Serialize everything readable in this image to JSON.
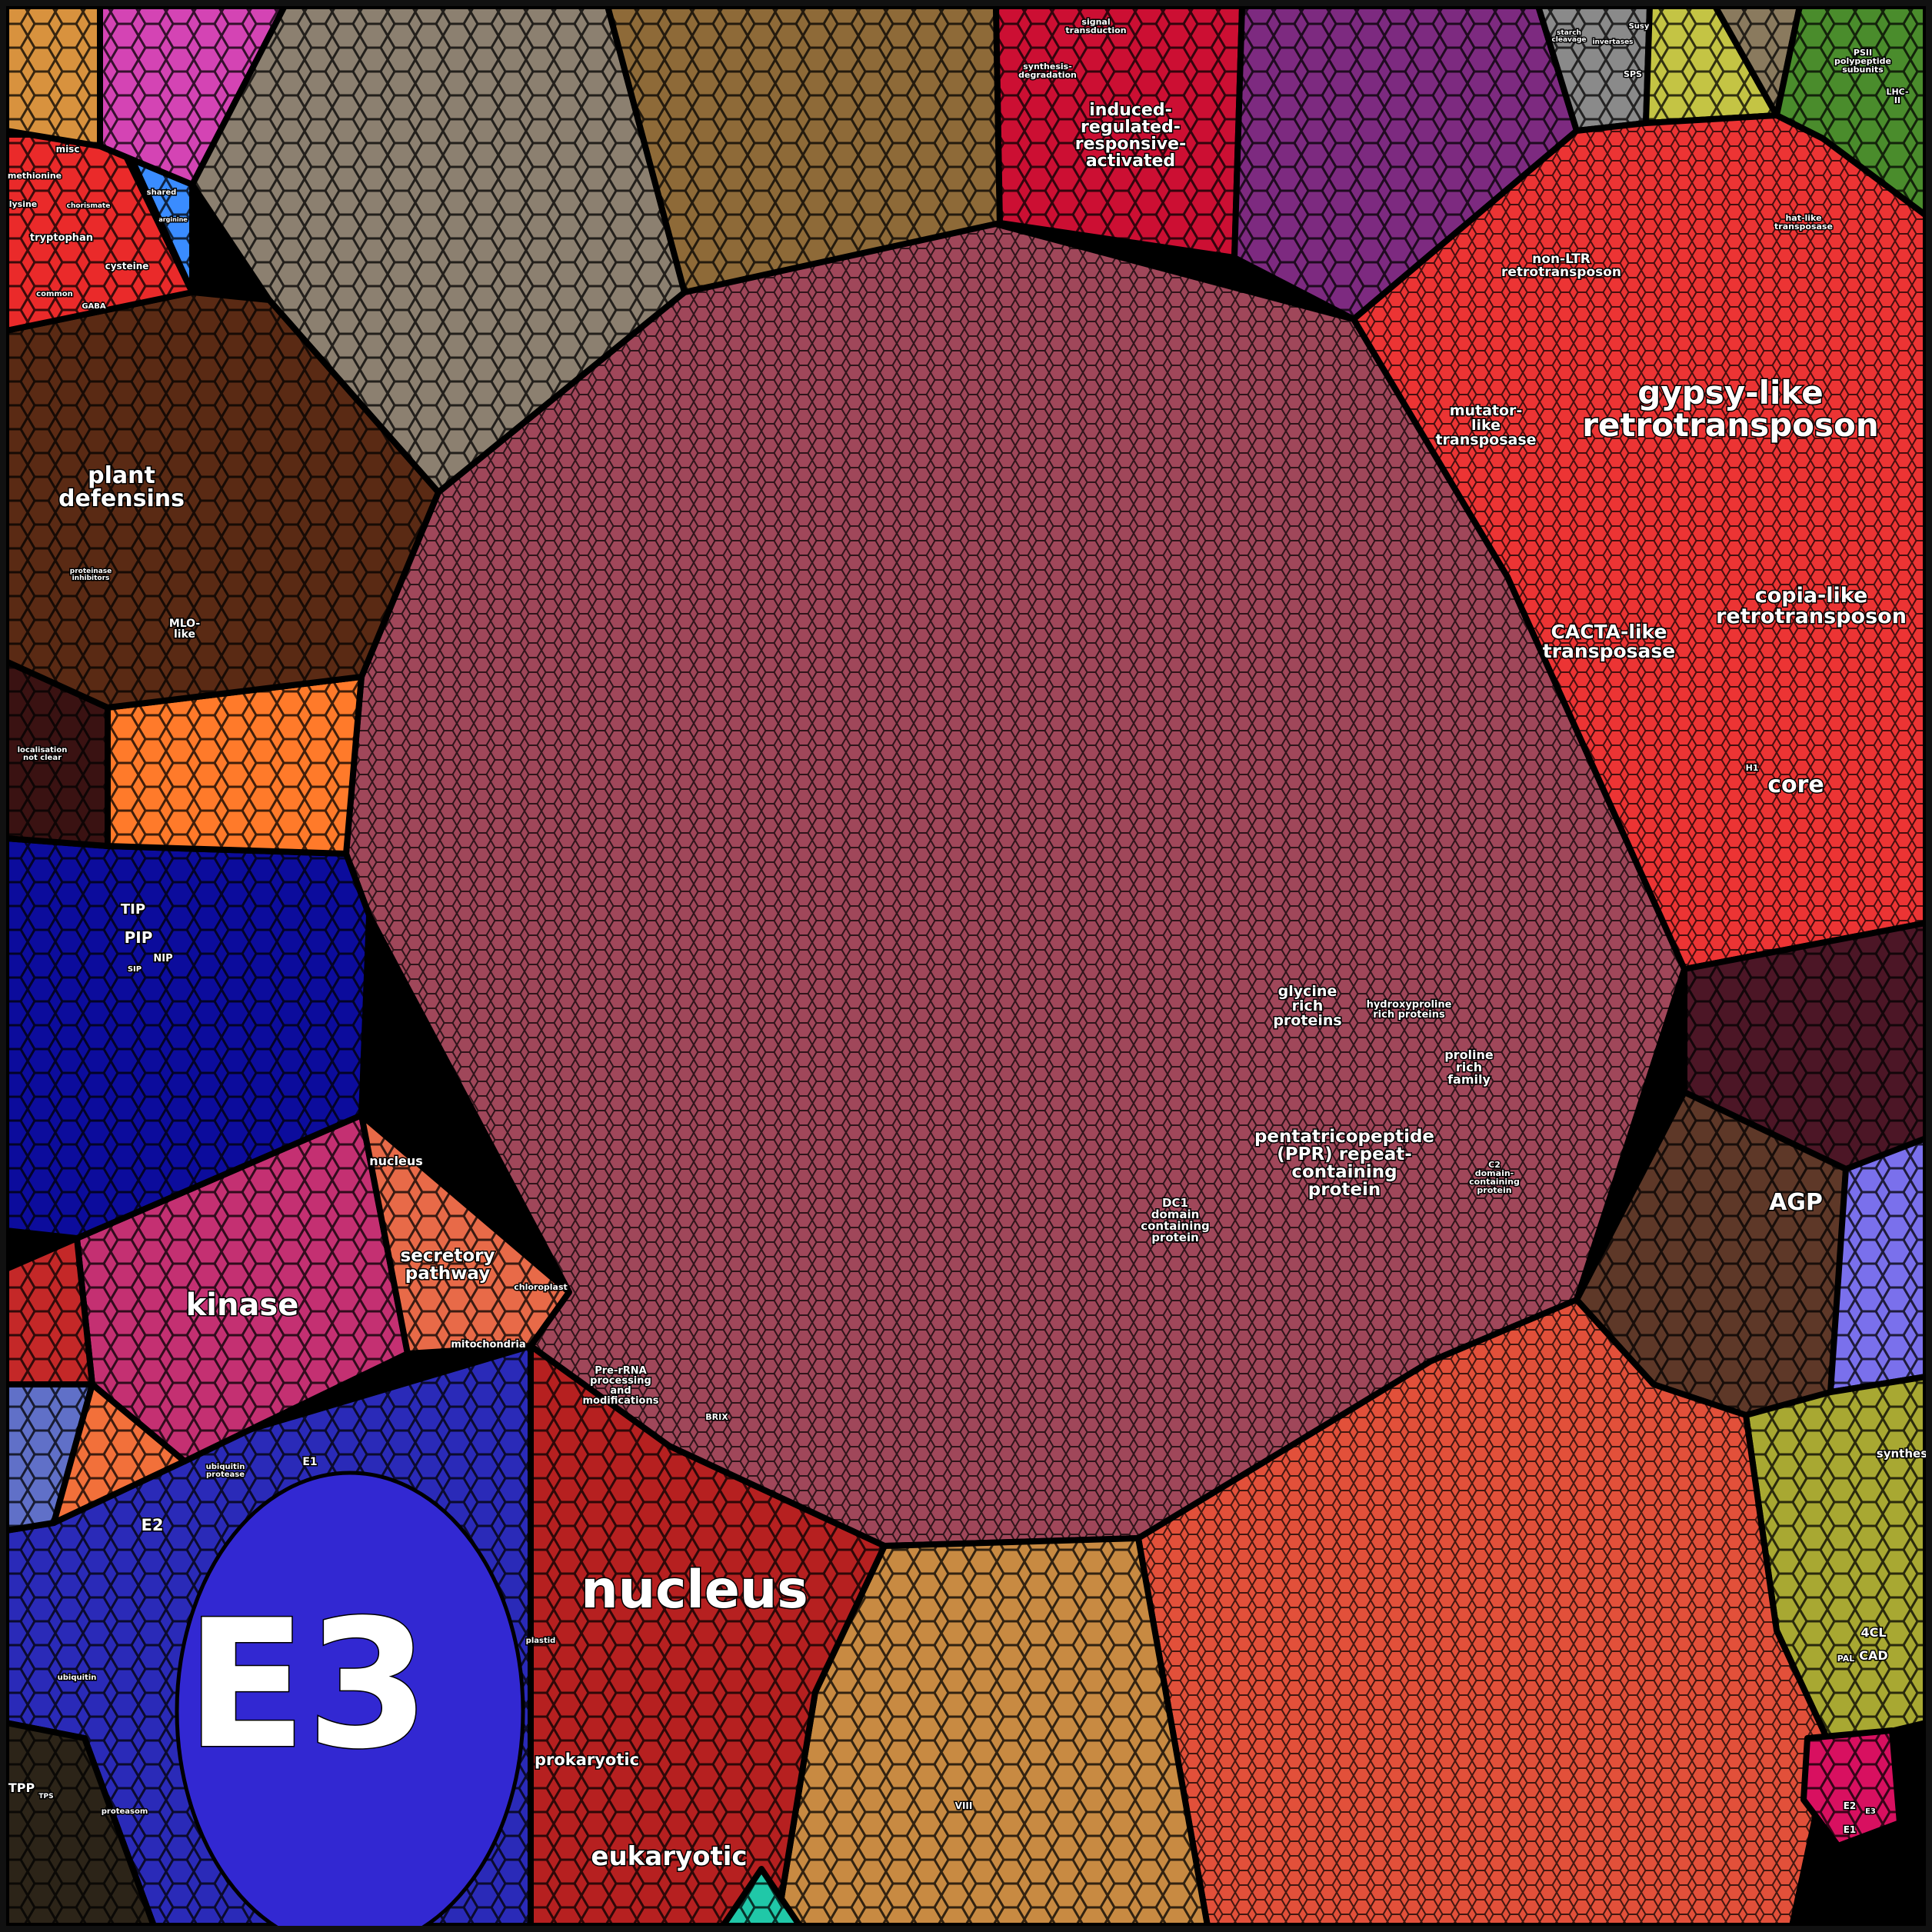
{
  "regions": [
    {
      "name": "ppr-repeat-proteins",
      "color": "#a0475a"
    },
    {
      "name": "taupe-grey-group",
      "color": "#8c8070"
    },
    {
      "name": "gold-brown-group",
      "color": "#8e6a38"
    },
    {
      "name": "signalling-crimson",
      "color": "#cc0f33"
    },
    {
      "name": "purple-group",
      "color": "#7d2a80"
    },
    {
      "name": "major-cho-grey",
      "color": "#8a8a8a"
    },
    {
      "name": "yellow-green-group",
      "color": "#c4c444"
    },
    {
      "name": "glycolysis-taupe",
      "color": "#8a7a5e"
    },
    {
      "name": "photosynthesis-green",
      "color": "#4a8c2c"
    },
    {
      "name": "transposons-red",
      "color": "#ec3434"
    },
    {
      "name": "dark-maroon-group",
      "color": "#4c1626"
    },
    {
      "name": "cell-wall-brown",
      "color": "#5e3828"
    },
    {
      "name": "nucleotide-lavender",
      "color": "#7a70ec"
    },
    {
      "name": "secondary-olive",
      "color": "#a8a832"
    },
    {
      "name": "rna-regulation-orange-red",
      "color": "#e2503a"
    },
    {
      "name": "misc-pink",
      "color": "#d81060"
    },
    {
      "name": "dna-gold",
      "color": "#c88a42"
    },
    {
      "name": "protein-synthesis-red",
      "color": "#b62020"
    },
    {
      "name": "protein-degradation-blue",
      "color": "#2a2ab8"
    },
    {
      "name": "signalling-kinase-pink",
      "color": "#c43072"
    },
    {
      "name": "protein-targeting-orange",
      "color": "#e86a48"
    },
    {
      "name": "transport-navy",
      "color": "#0c0c9c"
    },
    {
      "name": "lipid-orange",
      "color": "#ff7a2a"
    },
    {
      "name": "mito-electron-maroon",
      "color": "#3a1212"
    },
    {
      "name": "stress-brown",
      "color": "#5a2a14"
    },
    {
      "name": "amino-acid-red",
      "color": "#ea2a2a"
    },
    {
      "name": "amino-acid-degradation-blue",
      "color": "#3a8cff"
    },
    {
      "name": "hormone-orange",
      "color": "#d8923e"
    },
    {
      "name": "redox-magenta",
      "color": "#d444b4"
    },
    {
      "name": "trehalose-dark",
      "color": "#2c2418"
    },
    {
      "name": "left-red-small",
      "color": "#c42828"
    },
    {
      "name": "left-slate-blue",
      "color": "#6070c8"
    },
    {
      "name": "left-orange-small",
      "color": "#f2703a"
    },
    {
      "name": "teal-small",
      "color": "#20c8a8"
    },
    {
      "name": "e3-core",
      "color": "#3228d2"
    }
  ],
  "labels": [
    [
      "gypsy-like",
      "retrotransposon"
    ],
    [
      "copia-like",
      "retrotransposon"
    ],
    [
      "CACTA-like",
      "transposase"
    ],
    [
      "mutator-",
      "like",
      "transposase"
    ],
    [
      "non-LTR",
      "retrotransposon"
    ],
    [
      "hat-like",
      "transposase"
    ],
    [
      "core"
    ],
    [
      "H1"
    ],
    [
      "induced-",
      "regulated-",
      "responsive-",
      "activated"
    ],
    [
      "signal",
      "transduction"
    ],
    [
      "synthesis-",
      "degradation"
    ],
    [
      "plant",
      "defensins"
    ],
    [
      "MLO-",
      "like"
    ],
    [
      "proteinase",
      "inhibitors"
    ],
    [
      "localisation",
      "not clear"
    ],
    [
      "TIP"
    ],
    [
      "PIP"
    ],
    [
      "NIP"
    ],
    [
      "SIP"
    ],
    [
      "kinase"
    ],
    [
      "secretory",
      "pathway"
    ],
    [
      "nucleus"
    ],
    [
      "chloroplast"
    ],
    [
      "mitochondria"
    ],
    [
      "E3"
    ],
    [
      "E2"
    ],
    [
      "E1"
    ],
    [
      "ubiquitin",
      "protease"
    ],
    [
      "ubiquitin"
    ],
    [
      "proteasom"
    ],
    [
      "nucleus"
    ],
    [
      "Pre-rRNA",
      "processing",
      "and",
      "modifications"
    ],
    [
      "BRIX"
    ],
    [
      "plastid"
    ],
    [
      "prokaryotic"
    ],
    [
      "eukaryotic"
    ],
    [
      "glycine",
      "rich",
      "proteins"
    ],
    [
      "hydroxyproline",
      "rich proteins"
    ],
    [
      "proline",
      "rich",
      "family"
    ],
    [
      "pentatricopeptide",
      "(PPR) repeat-",
      "containing",
      "protein"
    ],
    [
      "DC1",
      "domain",
      "containing",
      "protein"
    ],
    [
      "C2",
      "domain-",
      "containing",
      "protein"
    ],
    [
      "AGP"
    ],
    [
      "synthesis"
    ],
    [
      "4CL"
    ],
    [
      "CAD"
    ],
    [
      "PAL"
    ],
    [
      "E2"
    ],
    [
      "E3"
    ],
    [
      "E1"
    ],
    [
      "TPP"
    ],
    [
      "TPS"
    ],
    [
      "PSII",
      "polypeptide",
      "subunits"
    ],
    [
      "LHC-",
      "II"
    ],
    [
      "starch",
      "cleavage"
    ],
    [
      "invertases"
    ],
    [
      "SPS"
    ],
    [
      "Susy"
    ],
    [
      "misc"
    ],
    [
      "methionine"
    ],
    [
      "lysine"
    ],
    [
      "tryptophan"
    ],
    [
      "cysteine"
    ],
    [
      "common"
    ],
    [
      "GABA"
    ],
    [
      "shared"
    ],
    [
      "arginine"
    ],
    [
      "chorismate"
    ],
    [
      "VIII"
    ]
  ]
}
